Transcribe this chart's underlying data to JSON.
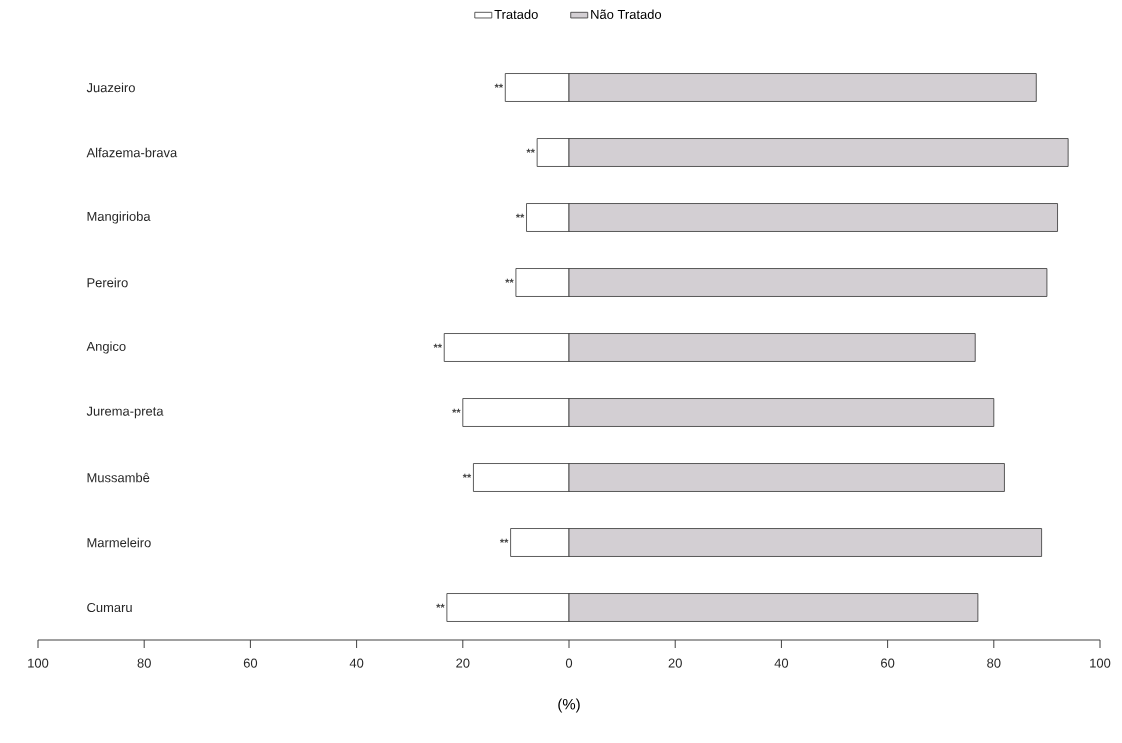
{
  "chart_data": {
    "type": "bar",
    "orientation": "horizontal",
    "xlabel": "(%)",
    "legend": "top",
    "grid": false,
    "stacked": true,
    "categories": [
      "Juazeiro",
      "Alfazema-brava",
      "Mangirioba",
      "Pereiro",
      "Angico",
      "Jurema-preta",
      "Mussambê",
      "Marmeleiro",
      "Cumaru"
    ],
    "series": [
      {
        "name": "Tratado",
        "color": "#ffffff",
        "values": [
          -12,
          -6,
          -8,
          -10,
          -23.5,
          -20,
          -18,
          -11,
          -23
        ]
      },
      {
        "name": "Não Tratado",
        "color": "#d3cfd3",
        "values": [
          88,
          94,
          92,
          90,
          76.5,
          80,
          82,
          89,
          77
        ]
      }
    ],
    "xlim": [
      -100,
      100
    ],
    "xticks": [
      {
        "value": -100,
        "label": "100"
      },
      {
        "value": -80,
        "label": "80"
      },
      {
        "value": -60,
        "label": "60"
      },
      {
        "value": -40,
        "label": "40"
      },
      {
        "value": -20,
        "label": "20"
      },
      {
        "value": 0,
        "label": "0"
      },
      {
        "value": 20,
        "label": "20"
      },
      {
        "value": 40,
        "label": "40"
      },
      {
        "value": 60,
        "label": "60"
      },
      {
        "value": 80,
        "label": "80"
      },
      {
        "value": 100,
        "label": "100"
      }
    ],
    "annotations": [
      {
        "text": "**",
        "x": -12,
        "y": "Juazeiro"
      },
      {
        "text": "**",
        "x": -6,
        "y": "Alfazema-brava"
      },
      {
        "text": "**",
        "x": -8,
        "y": "Mangirioba"
      },
      {
        "text": "**",
        "x": -10,
        "y": "Pereiro"
      },
      {
        "text": "**",
        "x": -23.5,
        "y": "Angico"
      },
      {
        "text": "**",
        "x": -20,
        "y": "Jurema-preta"
      },
      {
        "text": "**",
        "x": -18,
        "y": "Mussambê"
      },
      {
        "text": "**",
        "x": -11,
        "y": "Marmeleiro"
      },
      {
        "text": "**",
        "x": -23,
        "y": "Cumaru"
      }
    ]
  }
}
